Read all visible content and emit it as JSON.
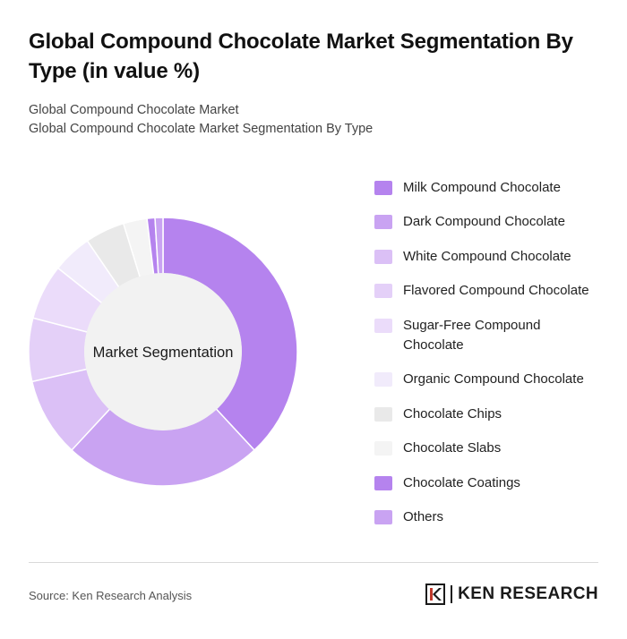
{
  "header": {
    "title": "Global Compound Chocolate Market Segmentation By Type (in value %)",
    "subtitle_line1": "Global Compound Chocolate Market",
    "subtitle_line2": "Global Compound Chocolate Market Segmentation By Type"
  },
  "chart_data": {
    "type": "pie",
    "variant": "donut",
    "center_label": "Market Segmentation",
    "legend_position": "right",
    "series": [
      {
        "name": "Milk Compound Chocolate",
        "value": 40,
        "color": "#b583ee"
      },
      {
        "name": "Dark Compound Chocolate",
        "value": 25,
        "color": "#c9a3f2"
      },
      {
        "name": "White Compound Chocolate",
        "value": 10,
        "color": "#dbc0f6"
      },
      {
        "name": "Flavored Compound Chocolate",
        "value": 8,
        "color": "#e4d0f8"
      },
      {
        "name": "Sugar-Free Compound Chocolate",
        "value": 7,
        "color": "#ebdcfa"
      },
      {
        "name": "Organic Compound Chocolate",
        "value": 5,
        "color": "#f1ebfb"
      },
      {
        "name": "Chocolate Chips",
        "value": 5,
        "color": "#e9e9e9"
      },
      {
        "name": "Chocolate Slabs",
        "value": 3,
        "color": "#f4f4f4"
      },
      {
        "name": "Chocolate Coatings",
        "value": 1,
        "color": "#b583ee"
      },
      {
        "name": "Others",
        "value": 1,
        "color": "#c9a3f2"
      }
    ]
  },
  "footer": {
    "source": "Source: Ken Research Analysis",
    "brand": "KEN RESEARCH",
    "logo_icon": "ken-research-logo-icon"
  }
}
